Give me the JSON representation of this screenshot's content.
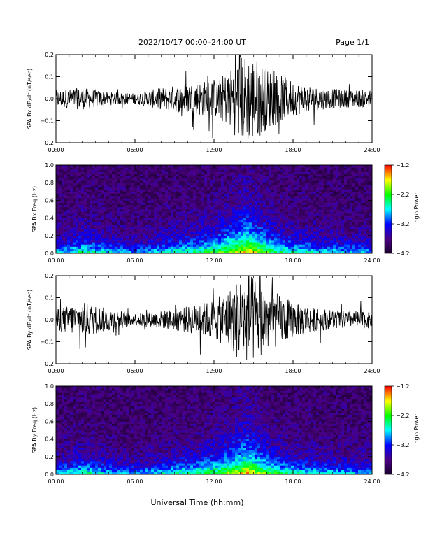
{
  "header": {
    "title": "2022/10/17  00:00–24:00 UT",
    "page": "Page 1/1"
  },
  "colors": {
    "trace": "#000000",
    "background": "#ffffff",
    "colormap": [
      "#1a0030",
      "#4b0082",
      "#0000ff",
      "#00ffff",
      "#00ff00",
      "#ffff00",
      "#ff0000"
    ]
  },
  "chart_data": [
    {
      "type": "line",
      "ylabel": "SPA Bx dB/dt (nT/sec)",
      "xlim": [
        0,
        24
      ],
      "ylim": [
        -0.2,
        0.2
      ],
      "x_ticks": [
        "00:00",
        "06:00",
        "12:00",
        "18:00",
        "24:00"
      ],
      "y_ticks": [
        "0.2",
        "0.1",
        "0.0",
        "−0.1",
        "−0.2"
      ],
      "envelope": {
        "hours": [
          0,
          2,
          4,
          6,
          8,
          10,
          12,
          13,
          14,
          15,
          16,
          18,
          20,
          22,
          24
        ],
        "amplitude": [
          0.04,
          0.05,
          0.03,
          0.025,
          0.05,
          0.07,
          0.09,
          0.12,
          0.2,
          0.2,
          0.14,
          0.08,
          0.05,
          0.04,
          0.04
        ]
      }
    },
    {
      "type": "heatmap",
      "ylabel": "SPA Bx Freq (Hz)",
      "xlim": [
        0,
        24
      ],
      "ylim": [
        0,
        1.0
      ],
      "x_ticks": [
        "00:00",
        "06:00",
        "12:00",
        "18:00",
        "24:00"
      ],
      "y_ticks": [
        "1.0",
        "0.8",
        "0.6",
        "0.4",
        "0.2",
        "0.0"
      ],
      "colorbar": {
        "label": "Log₁₀ Power",
        "range": [
          -4.2,
          -1.2
        ],
        "ticks": [
          "−1.2",
          "−2.2",
          "−3.2",
          "−4.2"
        ]
      }
    },
    {
      "type": "line",
      "ylabel": "SPA By dB/dt (nT/sec)",
      "xlim": [
        0,
        24
      ],
      "ylim": [
        -0.2,
        0.2
      ],
      "x_ticks": [
        "00:00",
        "06:00",
        "12:00",
        "18:00",
        "24:00"
      ],
      "y_ticks": [
        "0.2",
        "0.1",
        "0.0",
        "−0.1",
        "−0.2"
      ],
      "envelope": {
        "hours": [
          0,
          2,
          4,
          6,
          8,
          10,
          12,
          13,
          14,
          15,
          16,
          18,
          20,
          22,
          24
        ],
        "amplitude": [
          0.05,
          0.08,
          0.05,
          0.03,
          0.04,
          0.06,
          0.09,
          0.13,
          0.2,
          0.2,
          0.15,
          0.08,
          0.05,
          0.04,
          0.04
        ]
      }
    },
    {
      "type": "heatmap",
      "ylabel": "SPA By Freq (Hz)",
      "xlim": [
        0,
        24
      ],
      "ylim": [
        0,
        1.0
      ],
      "x_ticks": [
        "00:00",
        "06:00",
        "12:00",
        "18:00",
        "24:00"
      ],
      "y_ticks": [
        "1.0",
        "0.8",
        "0.6",
        "0.4",
        "0.2",
        "0.0"
      ],
      "colorbar": {
        "label": "Log₁₀ Power",
        "range": [
          -4.2,
          -1.2
        ],
        "ticks": [
          "−1.2",
          "−2.2",
          "−3.2",
          "−4.2"
        ]
      }
    }
  ],
  "xlabel": "Universal Time (hh:mm)"
}
